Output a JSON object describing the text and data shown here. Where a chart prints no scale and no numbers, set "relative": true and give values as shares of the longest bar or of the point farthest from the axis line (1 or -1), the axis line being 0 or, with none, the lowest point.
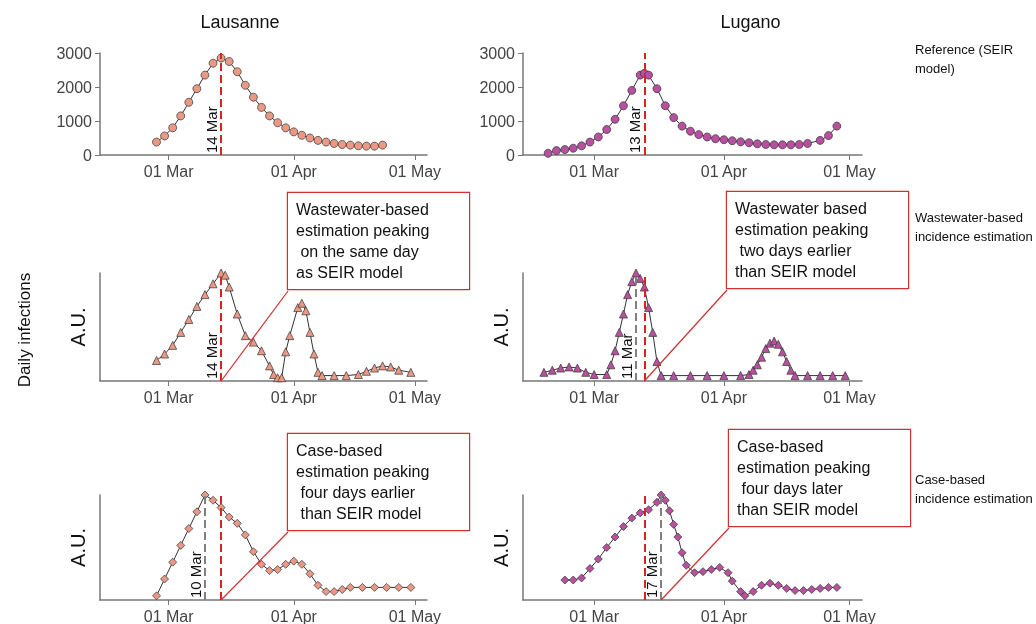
{
  "chart_data": [
    {
      "type": "line",
      "title": "Lausanne",
      "marker": "circle",
      "color": "#eb9985",
      "x": [
        "--02-26",
        "--02-28",
        "--03-02",
        "--03-04",
        "--03-06",
        "--03-08",
        "--03-10",
        "--03-12",
        "--03-14",
        "--03-16",
        "--03-18",
        "--03-20",
        "--03-22",
        "--03-24",
        "--03-26",
        "--03-28",
        "--03-30",
        "--04-01",
        "--04-03",
        "--04-05",
        "--04-07",
        "--04-09",
        "--04-11",
        "--04-13",
        "--04-15",
        "--04-17",
        "--04-19",
        "--04-21",
        "--04-23"
      ],
      "values": [
        380,
        560,
        800,
        1150,
        1550,
        1950,
        2350,
        2700,
        2850,
        2750,
        2450,
        2050,
        1700,
        1400,
        1150,
        950,
        800,
        680,
        580,
        500,
        430,
        380,
        340,
        310,
        290,
        270,
        260,
        260,
        290
      ],
      "xlim": [
        "--02-12",
        "--05-04"
      ],
      "xticks": [
        {
          "value": "--03-01",
          "label": "01 Mar"
        },
        {
          "value": "--04-01",
          "label": "01 Apr"
        },
        {
          "value": "--05-01",
          "label": "01 May"
        }
      ],
      "ylim": [
        0,
        3000
      ],
      "yticks": [
        0,
        1000,
        2000,
        3000
      ],
      "ref_lines": [
        {
          "axis": "x",
          "value": "--03-14",
          "label": "14 Mar",
          "color": "#e02020",
          "line_style": "dashed"
        }
      ]
    },
    {
      "type": "line",
      "title": "Lugano",
      "marker": "circle",
      "color": "#b8509f",
      "x": [
        "--02-18",
        "--02-20",
        "--02-22",
        "--02-24",
        "--02-26",
        "--02-28",
        "--03-02",
        "--03-04",
        "--03-06",
        "--03-08",
        "--03-10",
        "--03-12",
        "--03-13",
        "--03-14",
        "--03-16",
        "--03-18",
        "--03-20",
        "--03-22",
        "--03-24",
        "--03-26",
        "--03-28",
        "--03-30",
        "--04-01",
        "--04-03",
        "--04-05",
        "--04-07",
        "--04-09",
        "--04-11",
        "--04-13",
        "--04-15",
        "--04-17",
        "--04-19",
        "--04-21",
        "--04-24",
        "--04-26",
        "--04-28"
      ],
      "values": [
        50,
        130,
        160,
        200,
        270,
        380,
        530,
        750,
        1050,
        1450,
        1900,
        2350,
        2400,
        2350,
        1950,
        1450,
        1100,
        850,
        700,
        600,
        530,
        480,
        450,
        420,
        390,
        360,
        330,
        310,
        300,
        300,
        300,
        310,
        340,
        430,
        570,
        850
      ],
      "xlim": [
        "--02-12",
        "--05-04"
      ],
      "xticks": [
        {
          "value": "--03-01",
          "label": "01 Mar"
        },
        {
          "value": "--04-01",
          "label": "01 Apr"
        },
        {
          "value": "--05-01",
          "label": "01 May"
        }
      ],
      "ylim": [
        0,
        3000
      ],
      "yticks": [
        0,
        1000,
        2000,
        3000
      ],
      "ref_lines": [
        {
          "axis": "x",
          "value": "--03-13",
          "label": "13 Mar",
          "color": "#e02020",
          "line_style": "dashed"
        }
      ],
      "annotations": [
        "Reference (SEIR model)"
      ]
    },
    {
      "type": "line",
      "relative": true,
      "ylabel": "A.U.",
      "marker": "triangle",
      "color": "#eb9985",
      "tick_labels": "x",
      "x": [
        "--02-26",
        "--02-28",
        "--03-02",
        "--03-04",
        "--03-06",
        "--03-08",
        "--03-10",
        "--03-12",
        "--03-14",
        "--03-15",
        "--03-16",
        "--03-18",
        "--03-20",
        "--03-22",
        "--03-24",
        "--03-26",
        "--03-27",
        "--03-28",
        "--03-29",
        "--03-30",
        "--03-31",
        "--04-02",
        "--04-03",
        "--04-04",
        "--04-05",
        "--04-06",
        "--04-07",
        "--04-08",
        "--04-11",
        "--04-14",
        "--04-17",
        "--04-19",
        "--04-21",
        "--04-23",
        "--04-25",
        "--04-27",
        "--04-30"
      ],
      "values": [
        0.19,
        0.25,
        0.33,
        0.45,
        0.57,
        0.69,
        0.8,
        0.9,
        1.0,
        0.98,
        0.87,
        0.62,
        0.42,
        0.36,
        0.28,
        0.14,
        0.06,
        0.03,
        0.03,
        0.27,
        0.42,
        0.68,
        0.72,
        0.65,
        0.45,
        0.25,
        0.08,
        0.05,
        0.05,
        0.05,
        0.06,
        0.09,
        0.12,
        0.14,
        0.13,
        0.1,
        0.08
      ],
      "xlim": [
        "--02-12",
        "--05-04"
      ],
      "xticks": [
        {
          "value": "--03-01",
          "label": "01 Mar"
        },
        {
          "value": "--04-01",
          "label": "01 Apr"
        },
        {
          "value": "--05-01",
          "label": "01 May"
        }
      ],
      "ref_lines": [
        {
          "axis": "x",
          "value": "--03-14",
          "label": "14 Mar",
          "color": "#e02020",
          "line_style": "dashed"
        }
      ],
      "annotations": [
        {
          "text": "Wastewater-based estimation peaking on the same day as SEIR model",
          "x": "--03-14",
          "y": 0
        },
        "Daily infections"
      ]
    },
    {
      "type": "line",
      "relative": true,
      "ylabel": "A.U.",
      "marker": "triangle",
      "color": "#b8509f",
      "tick_labels": "x",
      "x": [
        "--02-17",
        "--02-19",
        "--02-21",
        "--02-23",
        "--02-25",
        "--02-27",
        "--03-01",
        "--03-04",
        "--03-05",
        "--03-06",
        "--03-07",
        "--03-08",
        "--03-09",
        "--03-10",
        "--03-11",
        "--03-12",
        "--03-13",
        "--03-14",
        "--03-15",
        "--03-16",
        "--03-17",
        "--03-20",
        "--03-24",
        "--03-28",
        "--04-01",
        "--04-05",
        "--04-07",
        "--04-08",
        "--04-09",
        "--04-10",
        "--04-11",
        "--04-12",
        "--04-13",
        "--04-14",
        "--04-15",
        "--04-16",
        "--04-17",
        "--04-18",
        "--04-21",
        "--04-24",
        "--04-27",
        "--04-30"
      ],
      "values": [
        0.08,
        0.1,
        0.12,
        0.13,
        0.12,
        0.08,
        0.06,
        0.06,
        0.15,
        0.28,
        0.45,
        0.62,
        0.8,
        0.92,
        1.0,
        0.95,
        0.87,
        0.68,
        0.45,
        0.18,
        0.05,
        0.05,
        0.05,
        0.05,
        0.05,
        0.05,
        0.06,
        0.1,
        0.15,
        0.22,
        0.3,
        0.35,
        0.37,
        0.34,
        0.27,
        0.18,
        0.1,
        0.05,
        0.05,
        0.05,
        0.05,
        0.05
      ],
      "xlim": [
        "--02-12",
        "--05-04"
      ],
      "xticks": [
        {
          "value": "--03-01",
          "label": "01 Mar"
        },
        {
          "value": "--04-01",
          "label": "01 Apr"
        },
        {
          "value": "--05-01",
          "label": "01 May"
        }
      ],
      "ref_lines": [
        {
          "axis": "x",
          "value": "--03-11",
          "label": "11 Mar",
          "color": "#808080",
          "line_style": "dashed"
        },
        {
          "axis": "x",
          "value": "--03-13",
          "label": null,
          "color": "#e02020",
          "line_style": "dashed"
        }
      ],
      "annotations": [
        {
          "text": "Wastewater based estimation peaking two days earlier than SEIR model",
          "x": "--03-13",
          "y": 0
        },
        "Wastewater-based incidence estimation"
      ]
    },
    {
      "type": "line",
      "relative": true,
      "ylabel": "A.U.",
      "marker": "diamond",
      "color": "#eb9985",
      "tick_labels": "x",
      "x": [
        "--02-26",
        "--02-28",
        "--03-02",
        "--03-04",
        "--03-06",
        "--03-08",
        "--03-10",
        "--03-12",
        "--03-14",
        "--03-16",
        "--03-18",
        "--03-20",
        "--03-22",
        "--03-24",
        "--03-26",
        "--03-28",
        "--03-30",
        "--04-01",
        "--04-03",
        "--04-05",
        "--04-07",
        "--04-09",
        "--04-11",
        "--04-13",
        "--04-15",
        "--04-18",
        "--04-21",
        "--04-24",
        "--04-27",
        "--04-30"
      ],
      "values": [
        0.04,
        0.2,
        0.36,
        0.52,
        0.68,
        0.84,
        1.0,
        0.95,
        0.88,
        0.79,
        0.73,
        0.62,
        0.46,
        0.34,
        0.28,
        0.29,
        0.34,
        0.37,
        0.34,
        0.25,
        0.14,
        0.08,
        0.08,
        0.1,
        0.12,
        0.12,
        0.12,
        0.12,
        0.12,
        0.12
      ],
      "xlim": [
        "--02-12",
        "--05-04"
      ],
      "xticks": [
        {
          "value": "--03-01",
          "label": "01 Mar"
        },
        {
          "value": "--04-01",
          "label": "01 Apr"
        },
        {
          "value": "--05-01",
          "label": "01 May"
        }
      ],
      "ref_lines": [
        {
          "axis": "x",
          "value": "--03-10",
          "label": "10 Mar",
          "color": "#808080",
          "line_style": "dashed"
        },
        {
          "axis": "x",
          "value": "--03-14",
          "label": null,
          "color": "#e02020",
          "line_style": "dashed"
        }
      ],
      "annotations": [
        {
          "text": "Case-based estimation peaking four days earlier than SEIR model",
          "x": "--03-14",
          "y": 0
        }
      ]
    },
    {
      "type": "line",
      "relative": true,
      "ylabel": "A.U.",
      "marker": "diamond",
      "color": "#b8509f",
      "tick_labels": "x",
      "x": [
        "--02-22",
        "--02-24",
        "--02-26",
        "--02-28",
        "--03-02",
        "--03-04",
        "--03-06",
        "--03-08",
        "--03-10",
        "--03-12",
        "--03-14",
        "--03-16",
        "--03-17",
        "--03-18",
        "--03-19",
        "--03-20",
        "--03-21",
        "--03-22",
        "--03-23",
        "--03-25",
        "--03-27",
        "--03-29",
        "--03-31",
        "--04-02",
        "--04-03",
        "--04-05",
        "--04-06",
        "--04-08",
        "--04-10",
        "--04-12",
        "--04-14",
        "--04-16",
        "--04-18",
        "--04-20",
        "--04-22",
        "--04-24",
        "--04-26",
        "--04-28"
      ],
      "values": [
        0.19,
        0.19,
        0.21,
        0.3,
        0.39,
        0.5,
        0.6,
        0.7,
        0.78,
        0.83,
        0.86,
        0.93,
        1.0,
        0.95,
        0.85,
        0.72,
        0.6,
        0.45,
        0.33,
        0.26,
        0.27,
        0.29,
        0.31,
        0.26,
        0.18,
        0.08,
        0.04,
        0.08,
        0.14,
        0.16,
        0.14,
        0.11,
        0.09,
        0.09,
        0.1,
        0.11,
        0.12,
        0.12
      ],
      "xlim": [
        "--02-12",
        "--05-04"
      ],
      "xticks": [
        {
          "value": "--03-01",
          "label": "01 Mar"
        },
        {
          "value": "--04-01",
          "label": "01 Apr"
        },
        {
          "value": "--05-01",
          "label": "01 May"
        }
      ],
      "ref_lines": [
        {
          "axis": "x",
          "value": "--03-17",
          "label": "17 Mar",
          "color": "#808080",
          "line_style": "dashed"
        },
        {
          "axis": "x",
          "value": "--03-13",
          "label": null,
          "color": "#e02020",
          "line_style": "dashed"
        }
      ],
      "annotations": [
        {
          "text": "Case-based estimation peaking four days later than SEIR model",
          "x": "--03-17",
          "y": 0
        },
        "Case-based incidence estimation"
      ]
    }
  ]
}
